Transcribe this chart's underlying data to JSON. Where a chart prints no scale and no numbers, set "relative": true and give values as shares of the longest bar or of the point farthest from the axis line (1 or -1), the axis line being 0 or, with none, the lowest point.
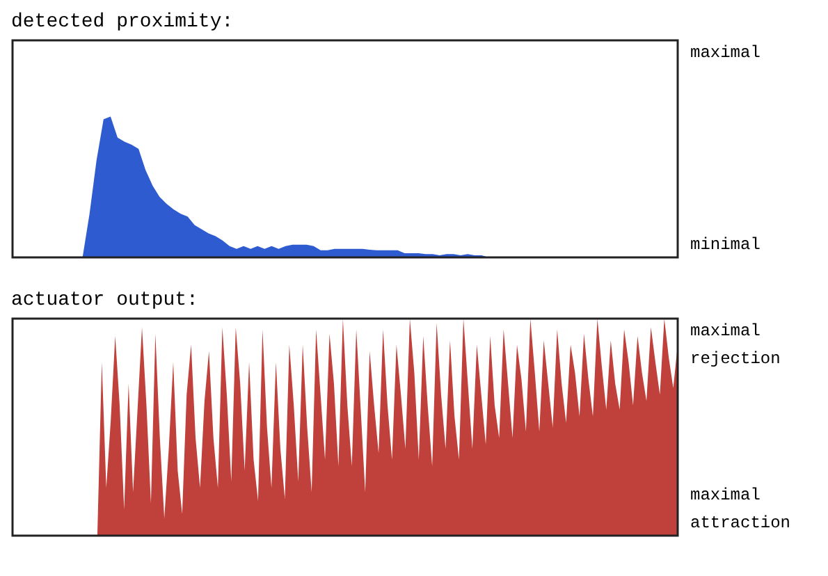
{
  "chart_data": [
    {
      "type": "area",
      "title": "detected proximity:",
      "relative": true,
      "annotations": [
        "maximal",
        "minimal"
      ],
      "color": "#2e5bcf",
      "categories": [
        null,
        null,
        null,
        null,
        null,
        null,
        null,
        null,
        null,
        null,
        null,
        null,
        null,
        null,
        null,
        null,
        null,
        null,
        null,
        null,
        null,
        null,
        null,
        null,
        null,
        null,
        null,
        null,
        null,
        null,
        null,
        null,
        null,
        null,
        null,
        null,
        null,
        null,
        null,
        null,
        null,
        null,
        null,
        null,
        null,
        null,
        null,
        null,
        null,
        null,
        null,
        null,
        null,
        null,
        null,
        null,
        null,
        null,
        null,
        null,
        null,
        null,
        null,
        null,
        null,
        null,
        null,
        null,
        null,
        null,
        null,
        null,
        null,
        null,
        null,
        null,
        null,
        null,
        null,
        null,
        null,
        null,
        null,
        null,
        null,
        null,
        null,
        null,
        null,
        null,
        null,
        null,
        null,
        null,
        null,
        null
      ],
      "values": [
        0,
        0,
        0,
        0,
        0,
        0,
        0,
        0,
        0,
        0,
        0,
        0.31,
        0.69,
        0.98,
        1,
        0.85,
        0.82,
        0.8,
        0.77,
        0.62,
        0.51,
        0.43,
        0.38,
        0.34,
        0.31,
        0.29,
        0.23,
        0.2,
        0.17,
        0.15,
        0.12,
        0.08,
        0.06,
        0.08,
        0.06,
        0.08,
        0.06,
        0.08,
        0.06,
        0.08,
        0.09,
        0.09,
        0.09,
        0.08,
        0.05,
        0.05,
        0.06,
        0.06,
        0.06,
        0.06,
        0.06,
        0.054,
        0.05,
        0.05,
        0.05,
        0.05,
        0.03,
        0.03,
        0.03,
        0.023,
        0.023,
        0.015,
        0.023,
        0.023,
        0.015,
        0.023,
        0.015,
        0.015,
        0,
        0,
        0,
        0,
        0,
        0,
        0,
        0,
        0,
        0,
        0,
        0,
        0,
        0,
        0,
        0,
        0,
        0,
        0,
        0,
        0,
        0,
        0,
        0,
        0,
        0,
        0,
        0
      ]
    },
    {
      "type": "area",
      "title": "actuator output:",
      "relative": true,
      "annotations": [
        "maximal rejection",
        "maximal attraction"
      ],
      "color": "#c0413b",
      "categories": [
        null,
        null,
        null,
        null,
        null,
        null,
        null,
        null,
        null,
        null,
        null,
        null,
        null,
        null,
        null,
        null,
        null,
        null,
        null,
        null,
        null,
        null,
        null,
        null,
        null,
        null,
        null,
        null,
        null,
        null,
        null,
        null,
        null,
        null,
        null,
        null,
        null,
        null,
        null,
        null,
        null,
        null,
        null,
        null,
        null,
        null,
        null,
        null,
        null,
        null,
        null,
        null,
        null,
        null,
        null,
        null,
        null,
        null,
        null,
        null,
        null,
        null,
        null,
        null,
        null,
        null,
        null,
        null,
        null,
        null,
        null,
        null,
        null,
        null,
        null,
        null,
        null,
        null,
        null,
        null,
        null,
        null,
        null,
        null,
        null,
        null,
        null,
        null,
        null,
        null,
        null,
        null,
        null,
        null,
        null,
        null,
        null,
        null,
        null,
        null,
        null,
        null,
        null,
        null,
        null,
        null,
        null,
        null,
        null,
        null,
        null,
        null,
        null,
        null,
        null,
        null,
        null,
        null,
        null,
        null,
        null,
        null,
        null,
        null,
        null,
        null,
        null,
        null,
        null,
        null,
        null,
        null,
        null,
        null,
        null,
        null,
        null,
        null,
        null,
        null,
        null,
        null,
        null,
        null,
        null,
        null,
        null,
        null,
        null,
        null
      ],
      "values": [
        0,
        0,
        0,
        0,
        0,
        0,
        0,
        0,
        0,
        0,
        0,
        0,
        0,
        0,
        0,
        0,
        0,
        0,
        0,
        0,
        0.8,
        0.22,
        0.53,
        0.92,
        0.6,
        0.12,
        0.7,
        0.2,
        0.58,
        0.96,
        0.6,
        0.15,
        0.93,
        0.45,
        0.08,
        0.4,
        0.8,
        0.3,
        0.1,
        0.65,
        0.88,
        0.45,
        0.22,
        0.62,
        0.85,
        0.45,
        0.22,
        0.96,
        0.65,
        0.25,
        0.96,
        0.7,
        0.3,
        0.8,
        0.35,
        0.16,
        0.95,
        0.5,
        0.22,
        0.8,
        0.4,
        0.17,
        0.88,
        0.6,
        0.25,
        0.88,
        0.5,
        0.2,
        0.95,
        0.65,
        0.35,
        0.93,
        0.7,
        0.32,
        1.0,
        0.6,
        0.32,
        0.95,
        0.58,
        0.2,
        0.85,
        0.6,
        0.38,
        0.95,
        0.6,
        0.35,
        0.88,
        0.65,
        0.4,
        1.0,
        0.75,
        0.35,
        0.92,
        0.6,
        0.32,
        0.98,
        0.65,
        0.4,
        0.9,
        0.55,
        0.35,
        1.0,
        0.7,
        0.4,
        0.88,
        0.65,
        0.42,
        0.92,
        0.6,
        0.45,
        0.95,
        0.7,
        0.45,
        0.88,
        0.72,
        0.48,
        1.0,
        0.75,
        0.48,
        0.9,
        0.7,
        0.5,
        0.95,
        0.7,
        0.52,
        0.88,
        0.75,
        0.55,
        0.93,
        0.72,
        0.55,
        1.0,
        0.78,
        0.58,
        0.9,
        0.7,
        0.58,
        0.95,
        0.8,
        0.6,
        0.92,
        0.75,
        0.62,
        0.96,
        0.8,
        0.65,
        1.0,
        0.82,
        0.68,
        0.88
      ]
    }
  ]
}
